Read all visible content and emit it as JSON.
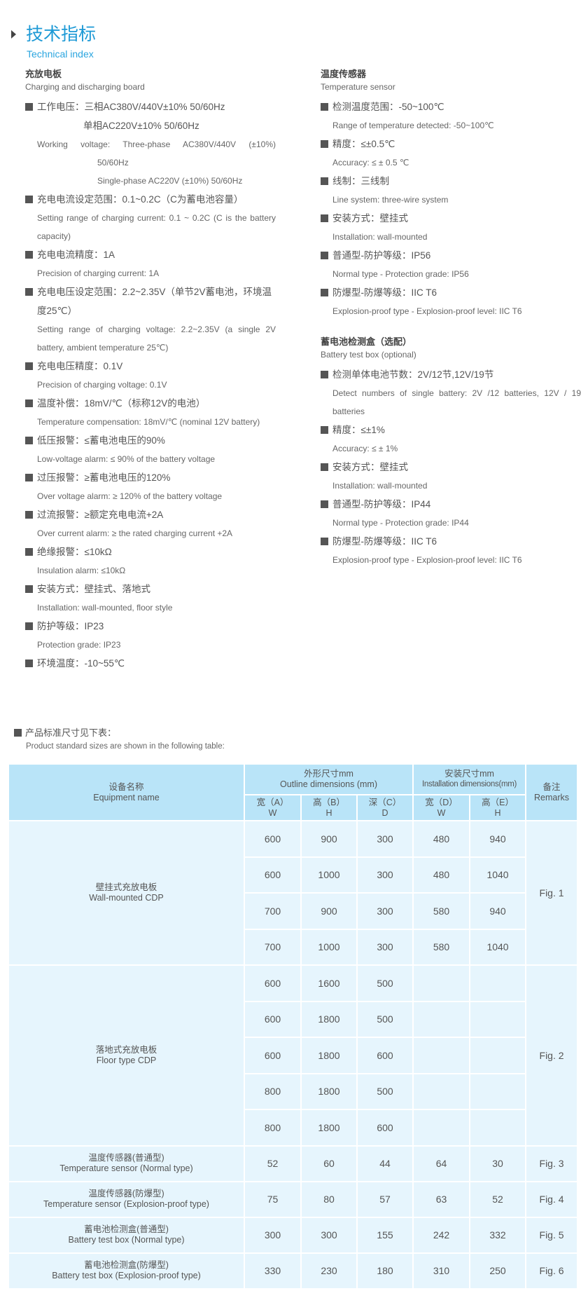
{
  "header": {
    "title_cn": "技术指标",
    "title_en": "Technical index"
  },
  "left": {
    "title_cn": "充放电板",
    "title_en": "Charging and discharging board",
    "first_item": {
      "cn": "工作电压：三相AC380V/440V±10%  50/60Hz",
      "cn_cont": "单相AC220V±10%   50/60Hz",
      "en": "Working voltage: Three-phase AC380V/440V (±10%)",
      "en_cont1": "50/60Hz",
      "en_cont2": "Single-phase AC220V (±10%) 50/60Hz"
    },
    "items": [
      {
        "cn": "充电电流设定范围：0.1~0.2C（C为蓄电池容量）",
        "en": "Setting range of charging current: 0.1 ~ 0.2C (C is the battery capacity)"
      },
      {
        "cn": "充电电流精度：1A",
        "en": "Precision of charging current: 1A"
      },
      {
        "cn": "充电电压设定范围：2.2~2.35V（单节2V蓄电池，环境温度25℃）",
        "en": "Setting range of charging voltage: 2.2~2.35V (a single 2V battery, ambient temperature 25℃)"
      },
      {
        "cn": "充电电压精度：0.1V",
        "en": "Precision of charging voltage: 0.1V"
      },
      {
        "cn": "温度补偿：18mV/℃（标称12V的电池）",
        "en": "Temperature compensation: 18mV/℃ (nominal 12V battery)"
      },
      {
        "cn": "低压报警：≤蓄电池电压的90%",
        "en": "Low-voltage alarm: ≤ 90% of the battery voltage"
      },
      {
        "cn": "过压报警：≥蓄电池电压的120%",
        "en": "Over voltage alarm: ≥ 120% of the battery voltage"
      },
      {
        "cn": "过流报警：≥额定充电电流+2A",
        "en": "Over current alarm: ≥ the rated charging current +2A"
      },
      {
        "cn": "绝缘报警：≤10kΩ",
        "en": "Insulation alarm: ≤10kΩ"
      },
      {
        "cn": "安装方式：壁挂式、落地式",
        "en": "Installation: wall-mounted, floor style"
      },
      {
        "cn": "防护等级：IP23",
        "en": "Protection grade: IP23"
      },
      {
        "cn": "环境温度：-10~55℃"
      }
    ]
  },
  "right": {
    "sections": [
      {
        "title_cn": "温度传感器",
        "title_en": "Temperature sensor",
        "items": [
          {
            "cn": "检测温度范围：-50~100℃",
            "en": "Range of temperature detected: -50~100℃"
          },
          {
            "cn": "精度：≤±0.5℃",
            "en": "Accuracy: ≤ ± 0.5 ℃"
          },
          {
            "cn": "线制：三线制",
            "en": "Line system: three-wire system"
          },
          {
            "cn": "安装方式：壁挂式",
            "en": "Installation: wall-mounted"
          },
          {
            "cn": "普通型-防护等级：IP56",
            "en": "Normal type - Protection grade: IP56"
          },
          {
            "cn": "防爆型-防爆等级：IIC T6",
            "en": "Explosion-proof type - Explosion-proof level: IIC T6"
          }
        ]
      },
      {
        "title_cn": "蓄电池检测盒（选配）",
        "title_en": "Battery test box (optional)",
        "items": [
          {
            "cn": "检测单体电池节数：2V/12节,12V/19节",
            "en": "Detect numbers of single battery: 2V /12 batteries, 12V / 19 batteries"
          },
          {
            "cn": "精度：≤±1%",
            "en": "Accuracy: ≤ ± 1%"
          },
          {
            "cn": "安装方式：壁挂式",
            "en": "Installation: wall-mounted"
          },
          {
            "cn": "普通型-防护等级：IP44",
            "en": "Normal type - Protection grade: IP44"
          },
          {
            "cn": "防爆型-防爆等级：IIC T6",
            "en": "Explosion-proof type - Explosion-proof level: IIC T6"
          }
        ]
      }
    ]
  },
  "note": {
    "cn": "产品标准尺寸见下表：",
    "en": "Product standard sizes are shown in the following table:"
  },
  "table": {
    "equipment_cn": "设备名称",
    "equipment_en": "Equipment name",
    "outline_cn": "外形尺寸mm",
    "outline_en": "Outline dimensions  (mm)",
    "install_cn": "安装尺寸mm",
    "install_en": "Installation dimensions(mm)",
    "remarks_cn": "备注",
    "remarks_en": "Remarks",
    "subcols": [
      {
        "cn": "宽（A）",
        "en": "W"
      },
      {
        "cn": "高（B）",
        "en": "H"
      },
      {
        "cn": "深（C）",
        "en": "D"
      },
      {
        "cn": "宽（D）",
        "en": "W"
      },
      {
        "cn": "高（E）",
        "en": "H"
      }
    ],
    "groups": [
      {
        "name_cn": "壁挂式充放电板",
        "name_en": "Wall-mounted CDP",
        "remark": "Fig. 1",
        "rows": [
          [
            "600",
            "900",
            "300",
            "480",
            "940"
          ],
          [
            "600",
            "1000",
            "300",
            "480",
            "1040"
          ],
          [
            "700",
            "900",
            "300",
            "580",
            "940"
          ],
          [
            "700",
            "1000",
            "300",
            "580",
            "1040"
          ]
        ]
      },
      {
        "name_cn": "落地式充放电板",
        "name_en": "Floor type CDP",
        "remark": "Fig. 2",
        "rows": [
          [
            "600",
            "1600",
            "500",
            "",
            ""
          ],
          [
            "600",
            "1800",
            "500",
            "",
            ""
          ],
          [
            "600",
            "1800",
            "600",
            "",
            ""
          ],
          [
            "800",
            "1800",
            "500",
            "",
            ""
          ],
          [
            "800",
            "1800",
            "600",
            "",
            ""
          ]
        ]
      },
      {
        "name_cn": "温度传感器(普通型)",
        "name_en": "Temperature sensor (Normal type)",
        "remark": "Fig. 3",
        "rows": [
          [
            "52",
            "60",
            "44",
            "64",
            "30"
          ]
        ]
      },
      {
        "name_cn": "温度传感器(防爆型)",
        "name_en": "Temperature sensor (Explosion-proof type)",
        "remark": "Fig. 4",
        "rows": [
          [
            "75",
            "80",
            "57",
            "63",
            "52"
          ]
        ]
      },
      {
        "name_cn": "蓄电池检测盒(普通型)",
        "name_en": "Battery test box (Normal type)",
        "remark": "Fig. 5",
        "rows": [
          [
            "300",
            "300",
            "155",
            "242",
            "332"
          ]
        ]
      },
      {
        "name_cn": "蓄电池检测盒(防爆型)",
        "name_en": "Battery test box (Explosion-proof type)",
        "remark": "Fig. 6",
        "rows": [
          [
            "330",
            "230",
            "180",
            "310",
            "250"
          ]
        ]
      }
    ]
  },
  "colors": {
    "title": "#1e9ad6",
    "table_header": "#b9e4f8",
    "table_body": "#e6f5fd",
    "bullet": "#555555"
  }
}
